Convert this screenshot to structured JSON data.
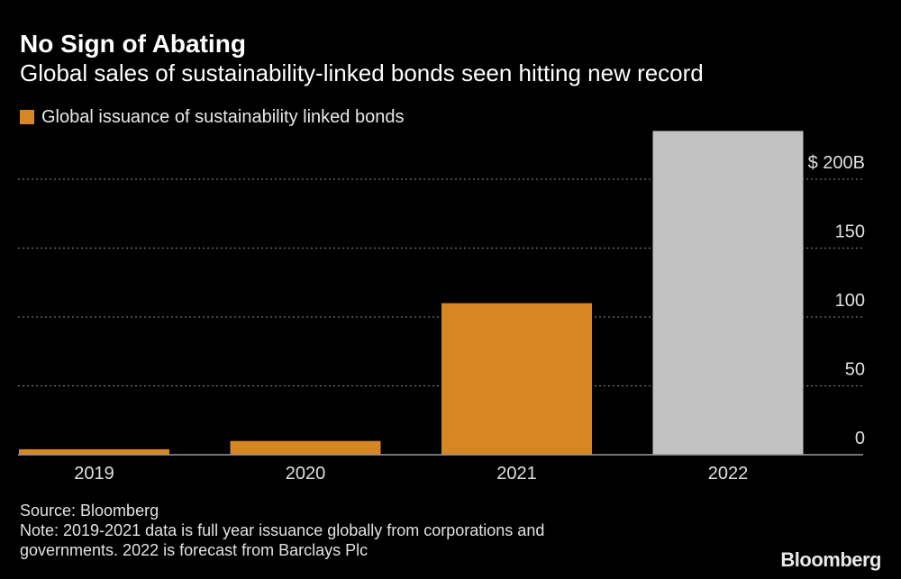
{
  "header": {
    "title": "No Sign of Abating",
    "subtitle": "Global sales of sustainability-linked bonds seen hitting new record"
  },
  "legend": {
    "label": "Global issuance of sustainability linked bonds"
  },
  "colors": {
    "actual": "#d68623",
    "forecast": "#c2c2c2",
    "grid": "#888888",
    "axis_text": "#e0e0e0"
  },
  "chart_data": {
    "type": "bar",
    "title": "No Sign of Abating",
    "subtitle": "Global sales of sustainability-linked bonds seen hitting new record",
    "categories": [
      "2019",
      "2020",
      "2021",
      "2022"
    ],
    "series": [
      {
        "name": "Global issuance of sustainability linked bonds",
        "values": [
          4,
          10,
          110,
          235
        ],
        "forecast": [
          false,
          false,
          false,
          true
        ]
      }
    ],
    "ylim": [
      0,
      235
    ],
    "yticks": [
      0,
      50,
      100,
      150,
      200
    ],
    "ytick_labels": [
      "0",
      "50",
      "100",
      "150",
      "$ 200B"
    ],
    "xlabel": "",
    "ylabel": "",
    "grid": true,
    "legend_position": "top-left"
  },
  "footer": {
    "source": "Source: Bloomberg",
    "note_line1": "Note: 2019-2021 data is full year issuance globally from corporations and",
    "note_line2": "governments. 2022 is forecast from Barclays Plc"
  },
  "branding": {
    "logo_text": "Bloomberg"
  }
}
